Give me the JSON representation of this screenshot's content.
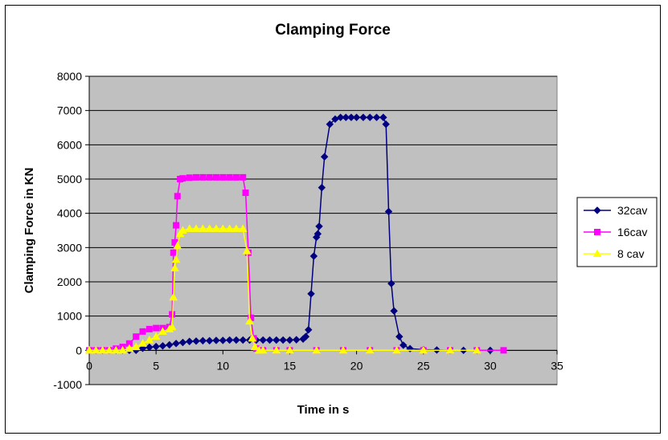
{
  "chart_data": {
    "type": "line",
    "title": "Clamping Force",
    "xlabel": "Time in s",
    "ylabel": "Clamping Force in KN",
    "xlim": [
      0,
      35
    ],
    "ylim": [
      -1000,
      8000
    ],
    "xticks": [
      0,
      5,
      10,
      15,
      20,
      25,
      30,
      35
    ],
    "yticks": [
      -1000,
      0,
      1000,
      2000,
      3000,
      4000,
      5000,
      6000,
      7000,
      8000
    ],
    "grid": "horizontal",
    "legend_position": "right",
    "plot_background": "#c0c0c0",
    "series": [
      {
        "name": "32cav",
        "color": "#000080",
        "marker": "diamond",
        "x": [
          0,
          0.5,
          1,
          1.5,
          2,
          2.5,
          3,
          3.5,
          4,
          4.5,
          5,
          5.5,
          6,
          6.5,
          7,
          7.5,
          8,
          8.5,
          9,
          9.5,
          10,
          10.5,
          11,
          11.5,
          12,
          12.5,
          13,
          13.5,
          14,
          14.5,
          15,
          15.5,
          16,
          16.2,
          16.4,
          16.6,
          16.8,
          17.0,
          17.1,
          17.2,
          17.4,
          17.6,
          18.0,
          18.4,
          18.8,
          19.2,
          19.6,
          20.0,
          20.5,
          21.0,
          21.5,
          22.0,
          22.2,
          22.4,
          22.6,
          22.8,
          23.2,
          23.5,
          24,
          25,
          26,
          27,
          28,
          29,
          30
        ],
        "y": [
          0,
          0,
          0,
          0,
          0,
          0,
          0,
          0,
          60,
          90,
          110,
          130,
          160,
          200,
          230,
          260,
          270,
          280,
          280,
          290,
          290,
          300,
          300,
          300,
          300,
          300,
          300,
          300,
          300,
          300,
          300,
          310,
          330,
          400,
          600,
          1650,
          2750,
          3300,
          3400,
          3620,
          4750,
          5650,
          6600,
          6750,
          6800,
          6800,
          6800,
          6800,
          6800,
          6800,
          6800,
          6800,
          6600,
          4050,
          1950,
          1150,
          400,
          150,
          50,
          20,
          10,
          0,
          0,
          0,
          0
        ]
      },
      {
        "name": "16cav",
        "color": "#ff00ff",
        "marker": "square",
        "x": [
          0,
          0.5,
          1,
          1.5,
          2,
          2.5,
          3,
          3.5,
          4,
          4.5,
          5,
          5.5,
          6,
          6.2,
          6.3,
          6.4,
          6.5,
          6.6,
          6.8,
          7,
          7.5,
          8,
          8.5,
          9,
          9.5,
          10,
          10.5,
          11,
          11.5,
          11.7,
          11.9,
          12.1,
          12.3,
          12.5,
          13,
          14,
          15,
          17,
          19,
          21,
          23,
          25,
          27,
          29,
          31
        ],
        "y": [
          0,
          0,
          0,
          0,
          50,
          100,
          200,
          400,
          550,
          620,
          650,
          650,
          680,
          1050,
          2850,
          3150,
          3650,
          4500,
          5000,
          5020,
          5040,
          5050,
          5050,
          5050,
          5050,
          5050,
          5050,
          5050,
          5050,
          4600,
          2850,
          950,
          350,
          50,
          0,
          0,
          0,
          0,
          0,
          0,
          0,
          0,
          0,
          0,
          0
        ]
      },
      {
        "name": "8 cav",
        "color": "#ffff00",
        "marker": "triangle",
        "x": [
          0,
          0.5,
          1,
          1.5,
          2,
          2.5,
          3,
          3.5,
          4,
          4.5,
          5,
          5.5,
          6,
          6.2,
          6.3,
          6.4,
          6.5,
          6.6,
          6.8,
          7,
          7.5,
          8,
          8.5,
          9,
          9.5,
          10,
          10.5,
          11,
          11.5,
          11.8,
          12.0,
          12.2,
          12.4,
          12.7,
          13,
          14,
          15,
          17,
          19,
          21,
          23,
          25,
          27,
          29
        ],
        "y": [
          0,
          0,
          0,
          0,
          0,
          0,
          50,
          100,
          200,
          300,
          400,
          550,
          620,
          680,
          1550,
          2400,
          2650,
          3050,
          3400,
          3500,
          3550,
          3550,
          3550,
          3550,
          3550,
          3550,
          3550,
          3550,
          3550,
          2900,
          850,
          350,
          100,
          0,
          0,
          0,
          0,
          0,
          0,
          0,
          0,
          0,
          0,
          0
        ]
      }
    ]
  }
}
